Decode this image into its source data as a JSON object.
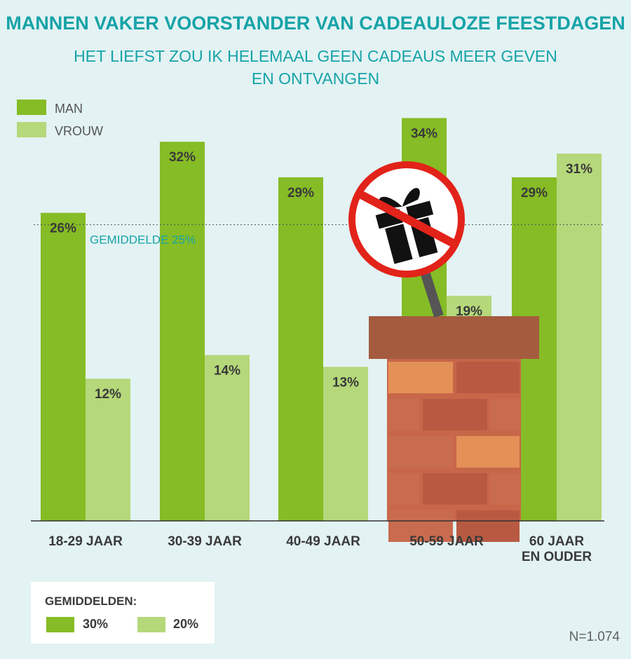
{
  "title": "MANNEN VAKER VOORSTANDER VAN CADEAULOZE FEESTDAGEN",
  "subtitle_line1": "HET LIEFST ZOU IK HELEMAAL GEEN CADEAUS MEER GEVEN",
  "subtitle_line2": "EN ONTVANGEN",
  "colors": {
    "background": "#e3f2f3",
    "man": "#86bc25",
    "vrouw": "#b5d87a",
    "title": "#16a3a8",
    "brick": "#c8664a",
    "brick_light": "#e39157",
    "chimney_cap": "#a55b3e",
    "sign_red": "#e2231a"
  },
  "icons": [
    "no-gift-sign-icon",
    "chimney-illustration"
  ],
  "chart_data": {
    "type": "bar",
    "categories": [
      "18-29 JAAR",
      "30-39 JAAR",
      "40-49 JAAR",
      "50-59 JAAR",
      "60 JAAR EN OUDER"
    ],
    "category_lines": [
      [
        "18-29 JAAR"
      ],
      [
        "30-39 JAAR"
      ],
      [
        "40-49 JAAR"
      ],
      [
        "50-59 JAAR"
      ],
      [
        "60 JAAR",
        "EN OUDER"
      ]
    ],
    "series": [
      {
        "name": "MAN",
        "values": [
          26,
          32,
          29,
          34,
          29
        ],
        "labels": [
          "26%",
          "32%",
          "29%",
          "34%",
          "29%"
        ]
      },
      {
        "name": "VROUW",
        "values": [
          12,
          14,
          13,
          19,
          31
        ],
        "labels": [
          "12%",
          "14%",
          "13%",
          "19%",
          "31%"
        ]
      }
    ],
    "ylim": [
      0,
      34
    ],
    "reference_line": {
      "value": 25,
      "label": "GEMIDDELDE  25%"
    },
    "legend_placement": "top-left",
    "grid": false
  },
  "averages": {
    "heading": "GEMIDDELDEN:",
    "man": "30%",
    "vrouw": "20%"
  },
  "footnote": "N=1.074"
}
